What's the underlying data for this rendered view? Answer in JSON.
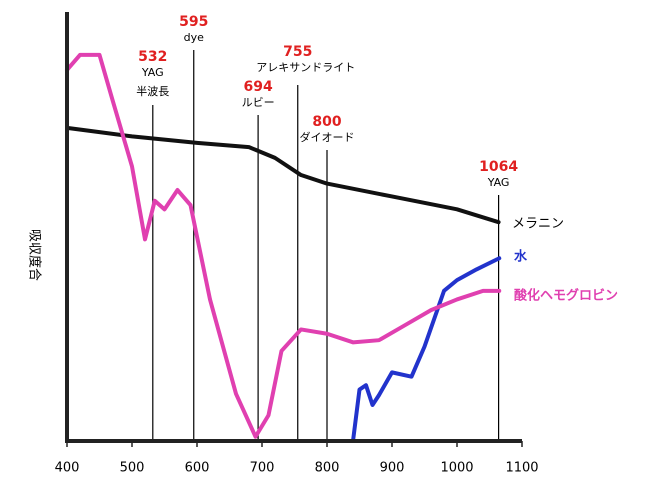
{
  "chart_data": {
    "type": "line",
    "y_label": "吸収度合",
    "xlim": [
      400,
      1100
    ],
    "ylim": [
      0,
      100
    ],
    "xticks": [
      400,
      500,
      600,
      700,
      800,
      900,
      1000,
      1100
    ],
    "series": [
      {
        "name": "メラニン",
        "color": "#111111",
        "x": [
          400,
          500,
          600,
          680,
          720,
          760,
          800,
          900,
          1000,
          1064
        ],
        "values": [
          73,
          71,
          69.5,
          68.5,
          66,
          62,
          60,
          57,
          54,
          51
        ]
      },
      {
        "name": "水",
        "color": "#2233cc",
        "x": [
          840,
          850,
          860,
          870,
          880,
          900,
          930,
          950,
          980,
          1000,
          1030,
          1065
        ],
        "values": [
          0,
          12,
          13,
          8.4,
          10.7,
          16,
          15,
          22,
          35,
          37.5,
          40,
          42.6
        ]
      },
      {
        "name": "酸化ヘモグロビン",
        "color": "#e040b0",
        "x": [
          400,
          420,
          450,
          470,
          500,
          520,
          535,
          550,
          570,
          590,
          620,
          660,
          690,
          710,
          730,
          760,
          800,
          840,
          880,
          920,
          960,
          1000,
          1040,
          1065
        ],
        "values": [
          86.5,
          90,
          90,
          79.5,
          64,
          47,
          56,
          54,
          58.5,
          55,
          33,
          11,
          1,
          6,
          21,
          26,
          25,
          23,
          23.5,
          27,
          30.5,
          33,
          35,
          35
        ]
      }
    ],
    "annotations": [
      {
        "x": 532,
        "lines": [
          "YAG",
          "半波長"
        ]
      },
      {
        "x": 595,
        "lines": [
          "dye"
        ]
      },
      {
        "x": 694,
        "lines": [
          "ルビー"
        ]
      },
      {
        "x": 755,
        "lines": [
          "アレキサンドライト"
        ]
      },
      {
        "x": 800,
        "lines": [
          "ダイオード"
        ]
      },
      {
        "x": 1064,
        "lines": [
          "YAG"
        ]
      }
    ]
  }
}
